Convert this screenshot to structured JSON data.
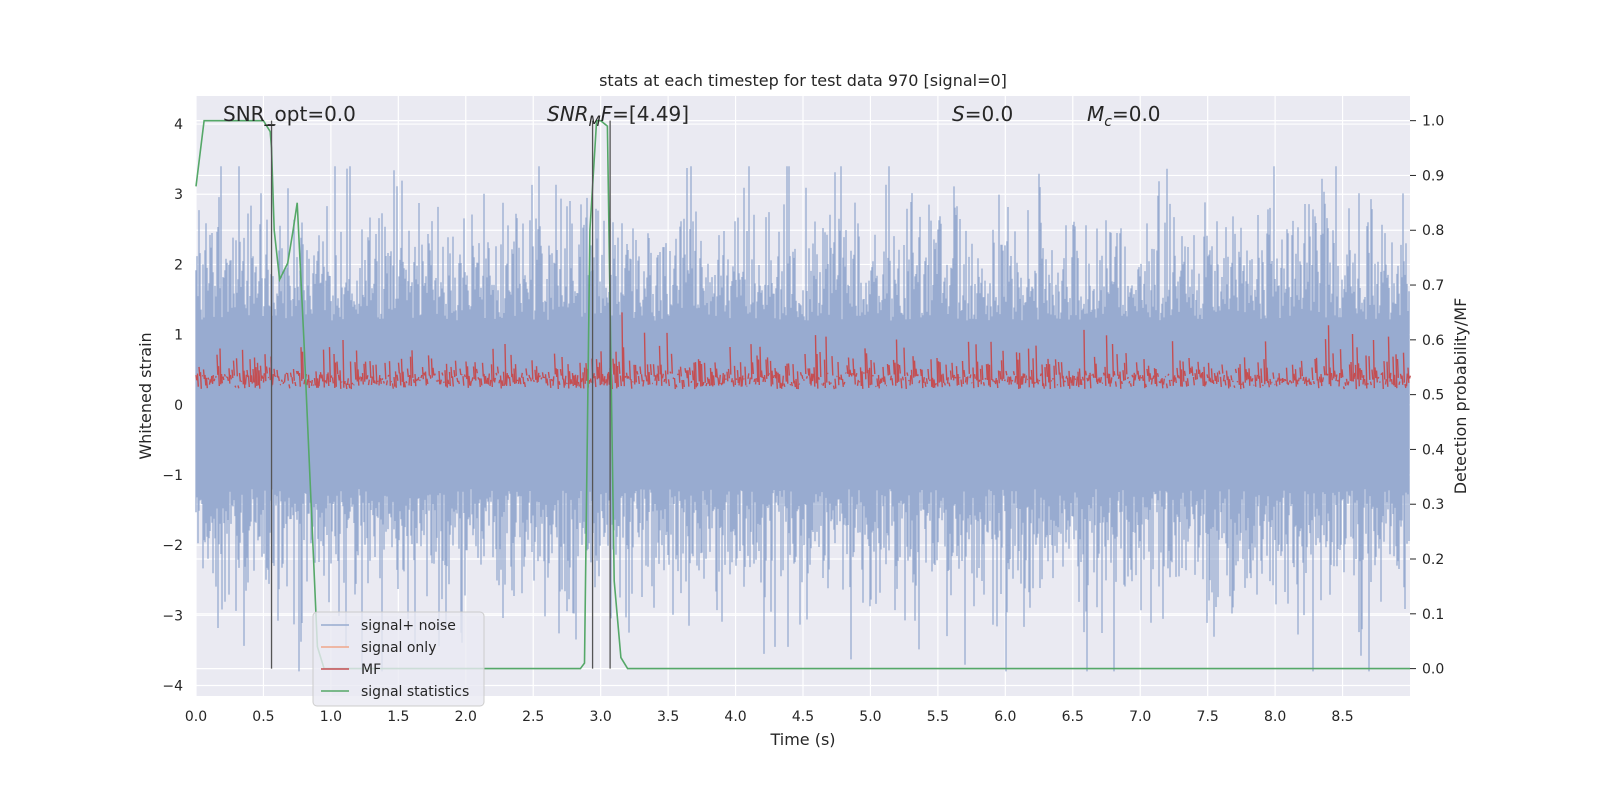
{
  "chart_data": {
    "type": "line",
    "title": "stats at each timestep for test data 970 [signal=0]",
    "xlabel": "Time (s)",
    "ylabel": "Whitened strain",
    "y2label": "Detection probability/MF",
    "xlim": [
      0,
      9.0
    ],
    "ylim": [
      -4.15,
      4.4
    ],
    "y2lim": [
      -0.05,
      1.045
    ],
    "xticks": [
      "0.0",
      "0.5",
      "1.0",
      "1.5",
      "2.0",
      "2.5",
      "3.0",
      "3.5",
      "4.0",
      "4.5",
      "5.0",
      "5.5",
      "6.0",
      "6.5",
      "7.0",
      "7.5",
      "8.0",
      "8.5"
    ],
    "yticks": [
      "4",
      "3",
      "2",
      "1",
      "0",
      "−1",
      "−2",
      "−3",
      "−4"
    ],
    "y2ticks": [
      "1.0",
      "0.9",
      "0.8",
      "0.7",
      "0.6",
      "0.5",
      "0.4",
      "0.3",
      "0.2",
      "0.1",
      "0.0"
    ],
    "grid": true,
    "legend_position": "lower-left",
    "annotations": {
      "snr_opt_name": "SNR_opt",
      "snr_opt_value": "=0.0",
      "snr_mf_name": "SNR",
      "snr_mf_sub": "M",
      "snr_mf_name2": "F",
      "snr_mf_value": "=[4.49]",
      "s_name": "S",
      "s_value": "=0.0",
      "mc_name": "M",
      "mc_sub": "c",
      "mc_value": "=0.0"
    },
    "series": [
      {
        "name": "signal+ noise",
        "color": "#98abd0",
        "axis": "left",
        "kind": "noise",
        "approx_range": [
          -3.8,
          3.4
        ]
      },
      {
        "name": "signal only",
        "color": "#f0a689",
        "axis": "left",
        "values": []
      },
      {
        "name": "MF",
        "color": "#c44e52",
        "axis": "right",
        "kind": "noise",
        "approx_range": [
          0.5,
          0.65
        ]
      },
      {
        "name": "signal statistics",
        "color": "#55a868",
        "axis": "right",
        "x": [
          0.0,
          0.06,
          0.1,
          0.5,
          0.55,
          0.56,
          0.58,
          0.62,
          0.68,
          0.72,
          0.75,
          0.8,
          0.9,
          0.95,
          1.0,
          2.85,
          2.88,
          2.92,
          2.97,
          3.0,
          3.05,
          3.1,
          3.15,
          3.2,
          9.0
        ],
        "values": [
          0.88,
          1.0,
          1.0,
          1.0,
          0.98,
          0.95,
          0.8,
          0.71,
          0.74,
          0.8,
          0.85,
          0.6,
          0.04,
          0.0,
          0.0,
          0.0,
          0.01,
          0.8,
          1.0,
          1.0,
          0.99,
          0.16,
          0.02,
          0.0,
          0.0
        ]
      }
    ],
    "vlines": [
      0.56,
      2.94,
      3.07
    ],
    "vline_color": "#555555"
  }
}
